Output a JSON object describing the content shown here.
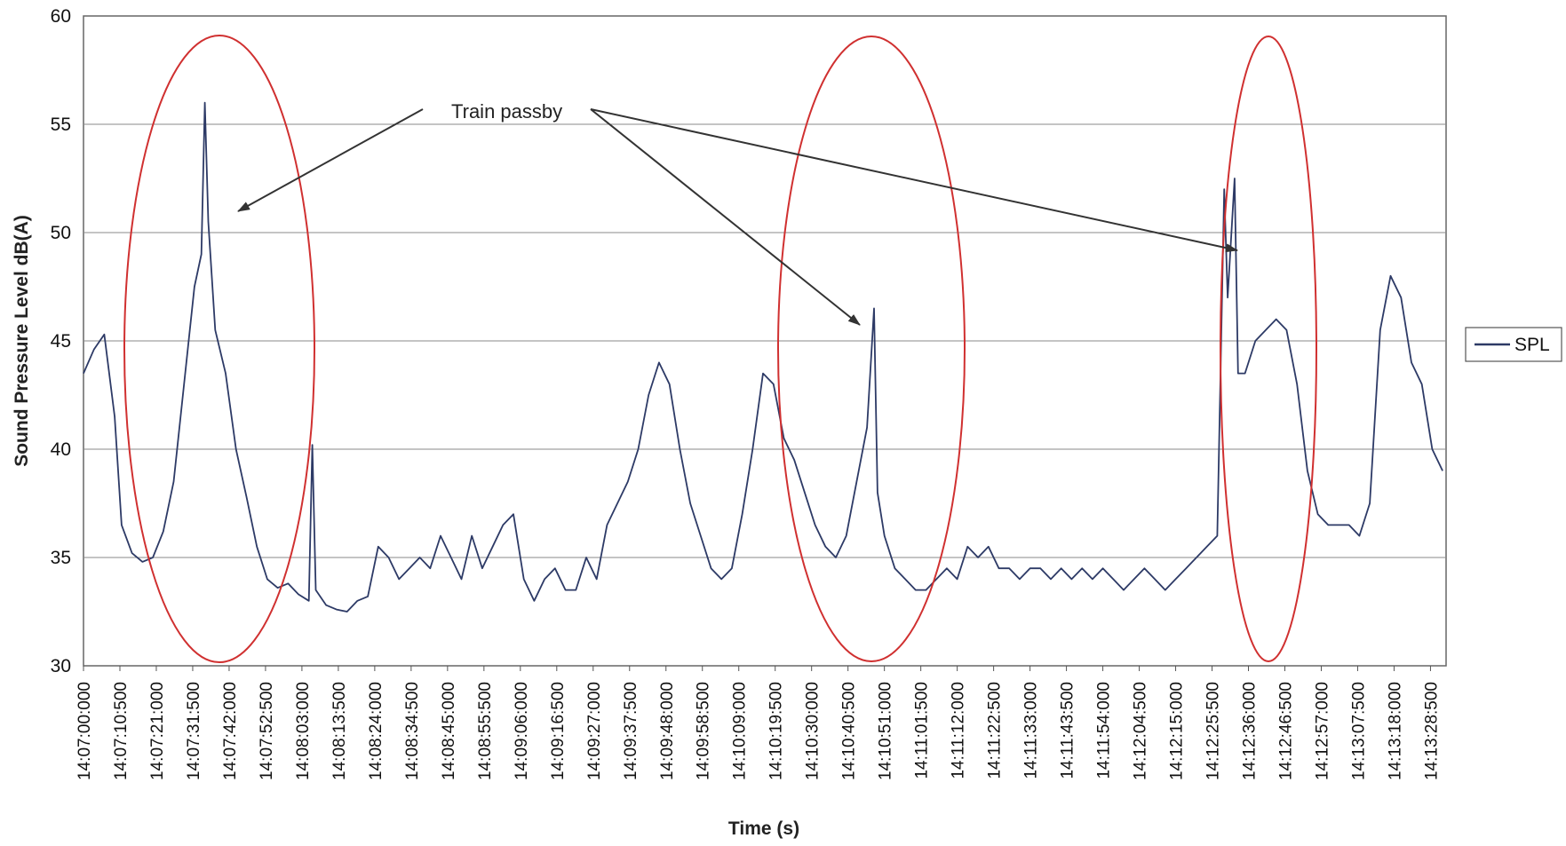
{
  "chart_data": {
    "type": "line",
    "title": "",
    "xlabel": "Time (s)",
    "ylabel": "Sound Pressure Level dB(A)",
    "ylim": [
      30,
      60
    ],
    "yticks": [
      30,
      35,
      40,
      45,
      50,
      55,
      60
    ],
    "grid": "horizontal",
    "legend": {
      "placement": "right",
      "entries": [
        "SPL"
      ]
    },
    "x_start": "14:07:00:000",
    "x_end": "14:13:33:000",
    "xtick_labels": [
      "14:07:00:000",
      "14:07:10:500",
      "14:07:21:000",
      "14:07:31:500",
      "14:07:42:000",
      "14:07:52:500",
      "14:08:03:000",
      "14:08:13:500",
      "14:08:24:000",
      "14:08:34:500",
      "14:08:45:000",
      "14:08:55:500",
      "14:09:06:000",
      "14:09:16:500",
      "14:09:27:000",
      "14:09:37:500",
      "14:09:48:000",
      "14:09:58:500",
      "14:10:09:000",
      "14:10:19:500",
      "14:10:30:000",
      "14:10:40:500",
      "14:10:51:000",
      "14:11:01:500",
      "14:11:12:000",
      "14:11:22:500",
      "14:11:33:000",
      "14:11:43:500",
      "14:11:54:000",
      "14:12:04:500",
      "14:12:15:000",
      "14:12:25:500",
      "14:12:36:000",
      "14:12:46:500",
      "14:12:57:000",
      "14:13:07:500",
      "14:13:18:000",
      "14:13:28:500"
    ],
    "series": [
      {
        "name": "SPL",
        "color": "#2d3a66",
        "x": [
          "14:07:00:000",
          "14:07:03:000",
          "14:07:06:000",
          "14:07:09:000",
          "14:07:11:000",
          "14:07:14:000",
          "14:07:17:000",
          "14:07:20:000",
          "14:07:23:000",
          "14:07:26:000",
          "14:07:29:000",
          "14:07:32:000",
          "14:07:34:000",
          "14:07:35:000",
          "14:07:36:000",
          "14:07:38:000",
          "14:07:41:000",
          "14:07:44:000",
          "14:07:47:000",
          "14:07:50:000",
          "14:07:53:000",
          "14:07:56:000",
          "14:07:59:000",
          "14:08:02:000",
          "14:08:05:000",
          "14:08:06:000",
          "14:08:07:000",
          "14:08:10:000",
          "14:08:13:000",
          "14:08:16:000",
          "14:08:19:000",
          "14:08:22:000",
          "14:08:25:000",
          "14:08:28:000",
          "14:08:31:000",
          "14:08:34:000",
          "14:08:37:000",
          "14:08:40:000",
          "14:08:43:000",
          "14:08:46:000",
          "14:08:49:000",
          "14:08:52:000",
          "14:08:55:000",
          "14:08:58:000",
          "14:09:01:000",
          "14:09:04:000",
          "14:09:07:000",
          "14:09:10:000",
          "14:09:13:000",
          "14:09:16:000",
          "14:09:19:000",
          "14:09:22:000",
          "14:09:25:000",
          "14:09:28:000",
          "14:09:31:000",
          "14:09:34:000",
          "14:09:37:000",
          "14:09:40:000",
          "14:09:43:000",
          "14:09:46:000",
          "14:09:49:000",
          "14:09:52:000",
          "14:09:55:000",
          "14:09:58:000",
          "14:10:01:000",
          "14:10:04:000",
          "14:10:07:000",
          "14:10:10:000",
          "14:10:13:000",
          "14:10:16:000",
          "14:10:19:000",
          "14:10:22:000",
          "14:10:25:000",
          "14:10:28:000",
          "14:10:31:000",
          "14:10:34:000",
          "14:10:37:000",
          "14:10:40:000",
          "14:10:43:000",
          "14:10:46:000",
          "14:10:48:000",
          "14:10:49:000",
          "14:10:51:000",
          "14:10:54:000",
          "14:10:57:000",
          "14:11:00:000",
          "14:11:03:000",
          "14:11:06:000",
          "14:11:09:000",
          "14:11:12:000",
          "14:11:15:000",
          "14:11:18:000",
          "14:11:21:000",
          "14:11:24:000",
          "14:11:27:000",
          "14:11:30:000",
          "14:11:33:000",
          "14:11:36:000",
          "14:11:39:000",
          "14:11:42:000",
          "14:11:45:000",
          "14:11:48:000",
          "14:11:51:000",
          "14:11:54:000",
          "14:11:57:000",
          "14:12:00:000",
          "14:12:03:000",
          "14:12:06:000",
          "14:12:09:000",
          "14:12:12:000",
          "14:12:15:000",
          "14:12:18:000",
          "14:12:21:000",
          "14:12:24:000",
          "14:12:27:000",
          "14:12:29:000",
          "14:12:30:000",
          "14:12:32:000",
          "14:12:33:000",
          "14:12:35:000",
          "14:12:38:000",
          "14:12:41:000",
          "14:12:44:000",
          "14:12:47:000",
          "14:12:50:000",
          "14:12:53:000",
          "14:12:56:000",
          "14:12:59:000",
          "14:13:02:000",
          "14:13:05:000",
          "14:13:08:000",
          "14:13:11:000",
          "14:13:14:000",
          "14:13:17:000",
          "14:13:20:000",
          "14:13:23:000",
          "14:13:26:000",
          "14:13:29:000",
          "14:13:32:000"
        ],
        "values": [
          43.5,
          44.6,
          45.3,
          41.5,
          36.5,
          35.2,
          34.8,
          35.0,
          36.2,
          38.5,
          43.0,
          47.5,
          49.0,
          56.0,
          50.5,
          45.5,
          43.5,
          40.0,
          37.8,
          35.5,
          34.0,
          33.6,
          33.8,
          33.3,
          33.0,
          40.2,
          33.5,
          32.8,
          32.6,
          32.5,
          33.0,
          33.2,
          35.5,
          35.0,
          34.0,
          34.5,
          35.0,
          34.5,
          36.0,
          35.0,
          34.0,
          36.0,
          34.5,
          35.5,
          36.5,
          37.0,
          34.0,
          33.0,
          34.0,
          34.5,
          33.5,
          33.5,
          35.0,
          34.0,
          36.5,
          37.5,
          38.5,
          40.0,
          42.5,
          44.0,
          43.0,
          40.0,
          37.5,
          36.0,
          34.5,
          34.0,
          34.5,
          37.0,
          40.0,
          43.5,
          43.0,
          40.5,
          39.5,
          38.0,
          36.5,
          35.5,
          35.0,
          36.0,
          38.5,
          41.0,
          46.5,
          38.0,
          36.0,
          34.5,
          34.0,
          33.5,
          33.5,
          34.0,
          34.5,
          34.0,
          35.5,
          35.0,
          35.5,
          34.5,
          34.5,
          34.0,
          34.5,
          34.5,
          34.0,
          34.5,
          34.0,
          34.5,
          34.0,
          34.5,
          34.0,
          33.5,
          34.0,
          34.5,
          34.0,
          33.5,
          34.0,
          34.5,
          35.0,
          35.5,
          36.0,
          52.0,
          47.0,
          52.5,
          43.5,
          43.5,
          45.0,
          45.5,
          46.0,
          45.5,
          43.0,
          39.0,
          37.0,
          36.5,
          36.5,
          36.5,
          36.0,
          37.5,
          45.5,
          48.0,
          47.0,
          44.0,
          43.0,
          40.0,
          39.0
        ]
      }
    ],
    "annotations": [
      {
        "text": "Train passby"
      }
    ]
  }
}
